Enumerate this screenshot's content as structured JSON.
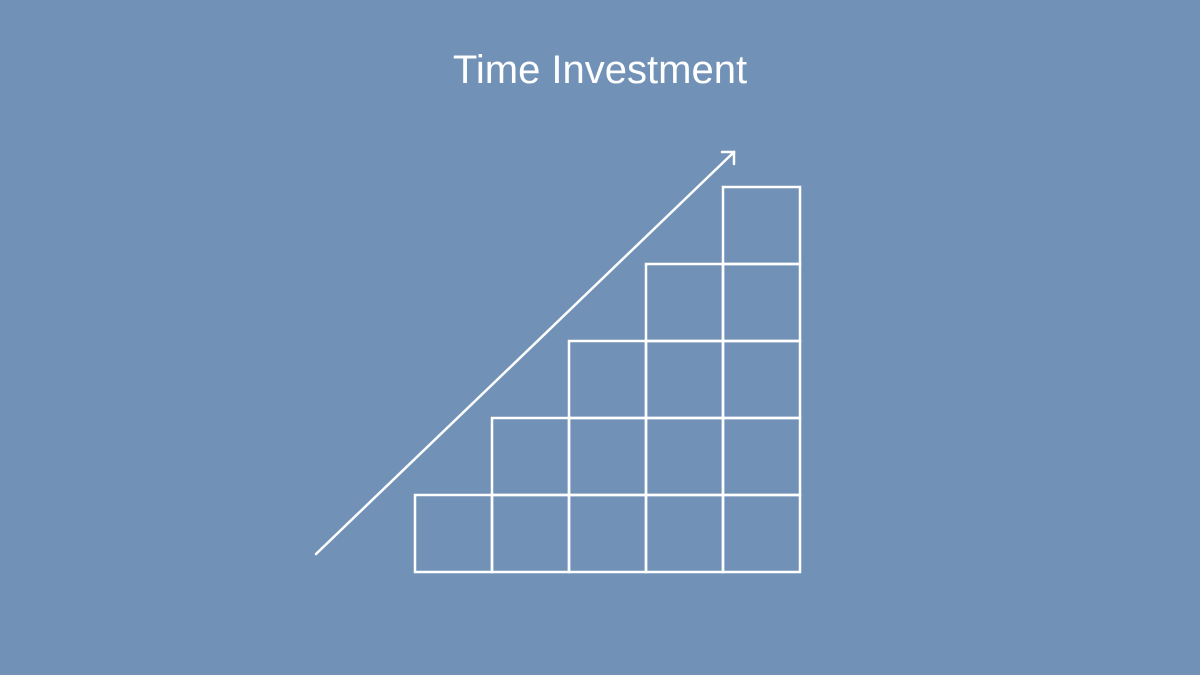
{
  "slide": {
    "title": "Time Investment",
    "background_color": "#7191b6",
    "foreground_color": "#ffffff"
  },
  "staircase": {
    "columns_heights": [
      1,
      2,
      3,
      4,
      5
    ]
  },
  "arrow": {
    "direction": "up-right",
    "icon": "arrow-up-right-icon"
  }
}
